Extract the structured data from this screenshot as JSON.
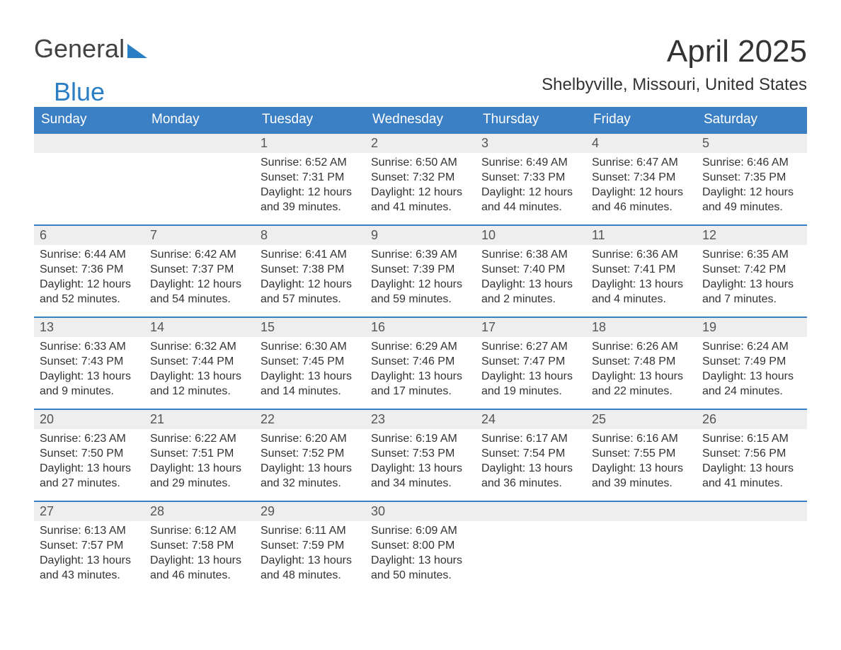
{
  "logo": {
    "part1": "General",
    "part2": "Blue",
    "icon_color": "#2a7ec4"
  },
  "title": "April 2025",
  "location": "Shelbyville, Missouri, United States",
  "colors": {
    "header_bg": "#3b7fc4",
    "header_text": "#ffffff",
    "daynum_bg": "#eeeeee",
    "body_text": "#333333",
    "week_border": "#3b7fc4"
  },
  "day_headers": [
    "Sunday",
    "Monday",
    "Tuesday",
    "Wednesday",
    "Thursday",
    "Friday",
    "Saturday"
  ],
  "weeks": [
    [
      {
        "day": "",
        "sunrise": "",
        "sunset": "",
        "daylight": ""
      },
      {
        "day": "",
        "sunrise": "",
        "sunset": "",
        "daylight": ""
      },
      {
        "day": "1",
        "sunrise": "Sunrise: 6:52 AM",
        "sunset": "Sunset: 7:31 PM",
        "daylight": "Daylight: 12 hours and 39 minutes."
      },
      {
        "day": "2",
        "sunrise": "Sunrise: 6:50 AM",
        "sunset": "Sunset: 7:32 PM",
        "daylight": "Daylight: 12 hours and 41 minutes."
      },
      {
        "day": "3",
        "sunrise": "Sunrise: 6:49 AM",
        "sunset": "Sunset: 7:33 PM",
        "daylight": "Daylight: 12 hours and 44 minutes."
      },
      {
        "day": "4",
        "sunrise": "Sunrise: 6:47 AM",
        "sunset": "Sunset: 7:34 PM",
        "daylight": "Daylight: 12 hours and 46 minutes."
      },
      {
        "day": "5",
        "sunrise": "Sunrise: 6:46 AM",
        "sunset": "Sunset: 7:35 PM",
        "daylight": "Daylight: 12 hours and 49 minutes."
      }
    ],
    [
      {
        "day": "6",
        "sunrise": "Sunrise: 6:44 AM",
        "sunset": "Sunset: 7:36 PM",
        "daylight": "Daylight: 12 hours and 52 minutes."
      },
      {
        "day": "7",
        "sunrise": "Sunrise: 6:42 AM",
        "sunset": "Sunset: 7:37 PM",
        "daylight": "Daylight: 12 hours and 54 minutes."
      },
      {
        "day": "8",
        "sunrise": "Sunrise: 6:41 AM",
        "sunset": "Sunset: 7:38 PM",
        "daylight": "Daylight: 12 hours and 57 minutes."
      },
      {
        "day": "9",
        "sunrise": "Sunrise: 6:39 AM",
        "sunset": "Sunset: 7:39 PM",
        "daylight": "Daylight: 12 hours and 59 minutes."
      },
      {
        "day": "10",
        "sunrise": "Sunrise: 6:38 AM",
        "sunset": "Sunset: 7:40 PM",
        "daylight": "Daylight: 13 hours and 2 minutes."
      },
      {
        "day": "11",
        "sunrise": "Sunrise: 6:36 AM",
        "sunset": "Sunset: 7:41 PM",
        "daylight": "Daylight: 13 hours and 4 minutes."
      },
      {
        "day": "12",
        "sunrise": "Sunrise: 6:35 AM",
        "sunset": "Sunset: 7:42 PM",
        "daylight": "Daylight: 13 hours and 7 minutes."
      }
    ],
    [
      {
        "day": "13",
        "sunrise": "Sunrise: 6:33 AM",
        "sunset": "Sunset: 7:43 PM",
        "daylight": "Daylight: 13 hours and 9 minutes."
      },
      {
        "day": "14",
        "sunrise": "Sunrise: 6:32 AM",
        "sunset": "Sunset: 7:44 PM",
        "daylight": "Daylight: 13 hours and 12 minutes."
      },
      {
        "day": "15",
        "sunrise": "Sunrise: 6:30 AM",
        "sunset": "Sunset: 7:45 PM",
        "daylight": "Daylight: 13 hours and 14 minutes."
      },
      {
        "day": "16",
        "sunrise": "Sunrise: 6:29 AM",
        "sunset": "Sunset: 7:46 PM",
        "daylight": "Daylight: 13 hours and 17 minutes."
      },
      {
        "day": "17",
        "sunrise": "Sunrise: 6:27 AM",
        "sunset": "Sunset: 7:47 PM",
        "daylight": "Daylight: 13 hours and 19 minutes."
      },
      {
        "day": "18",
        "sunrise": "Sunrise: 6:26 AM",
        "sunset": "Sunset: 7:48 PM",
        "daylight": "Daylight: 13 hours and 22 minutes."
      },
      {
        "day": "19",
        "sunrise": "Sunrise: 6:24 AM",
        "sunset": "Sunset: 7:49 PM",
        "daylight": "Daylight: 13 hours and 24 minutes."
      }
    ],
    [
      {
        "day": "20",
        "sunrise": "Sunrise: 6:23 AM",
        "sunset": "Sunset: 7:50 PM",
        "daylight": "Daylight: 13 hours and 27 minutes."
      },
      {
        "day": "21",
        "sunrise": "Sunrise: 6:22 AM",
        "sunset": "Sunset: 7:51 PM",
        "daylight": "Daylight: 13 hours and 29 minutes."
      },
      {
        "day": "22",
        "sunrise": "Sunrise: 6:20 AM",
        "sunset": "Sunset: 7:52 PM",
        "daylight": "Daylight: 13 hours and 32 minutes."
      },
      {
        "day": "23",
        "sunrise": "Sunrise: 6:19 AM",
        "sunset": "Sunset: 7:53 PM",
        "daylight": "Daylight: 13 hours and 34 minutes."
      },
      {
        "day": "24",
        "sunrise": "Sunrise: 6:17 AM",
        "sunset": "Sunset: 7:54 PM",
        "daylight": "Daylight: 13 hours and 36 minutes."
      },
      {
        "day": "25",
        "sunrise": "Sunrise: 6:16 AM",
        "sunset": "Sunset: 7:55 PM",
        "daylight": "Daylight: 13 hours and 39 minutes."
      },
      {
        "day": "26",
        "sunrise": "Sunrise: 6:15 AM",
        "sunset": "Sunset: 7:56 PM",
        "daylight": "Daylight: 13 hours and 41 minutes."
      }
    ],
    [
      {
        "day": "27",
        "sunrise": "Sunrise: 6:13 AM",
        "sunset": "Sunset: 7:57 PM",
        "daylight": "Daylight: 13 hours and 43 minutes."
      },
      {
        "day": "28",
        "sunrise": "Sunrise: 6:12 AM",
        "sunset": "Sunset: 7:58 PM",
        "daylight": "Daylight: 13 hours and 46 minutes."
      },
      {
        "day": "29",
        "sunrise": "Sunrise: 6:11 AM",
        "sunset": "Sunset: 7:59 PM",
        "daylight": "Daylight: 13 hours and 48 minutes."
      },
      {
        "day": "30",
        "sunrise": "Sunrise: 6:09 AM",
        "sunset": "Sunset: 8:00 PM",
        "daylight": "Daylight: 13 hours and 50 minutes."
      },
      {
        "day": "",
        "sunrise": "",
        "sunset": "",
        "daylight": ""
      },
      {
        "day": "",
        "sunrise": "",
        "sunset": "",
        "daylight": ""
      },
      {
        "day": "",
        "sunrise": "",
        "sunset": "",
        "daylight": ""
      }
    ]
  ]
}
